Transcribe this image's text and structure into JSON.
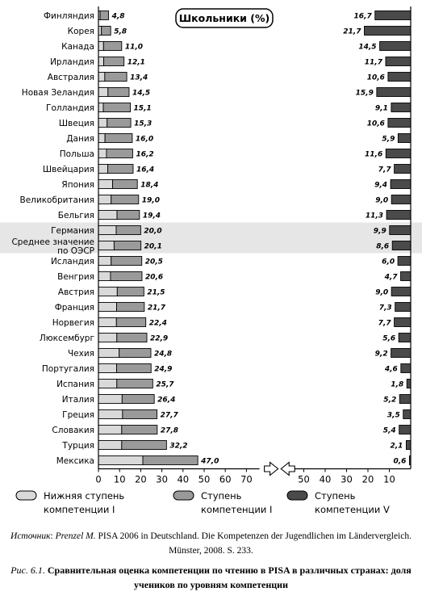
{
  "chart_data": {
    "type": "bar",
    "title": "Школьники (%)",
    "categories": [
      "Финляндия",
      "Корея",
      "Канада",
      "Ирландия",
      "Австралия",
      "Новая Зеландия",
      "Голландия",
      "Швеция",
      "Дания",
      "Польша",
      "Швейцария",
      "Япония",
      "Великобритания",
      "Бельгия",
      "Германия",
      "Среднее значение по ОЭСР",
      "Исландия",
      "Венгрия",
      "Австрия",
      "Франция",
      "Норвегия",
      "Люксембург",
      "Чехия",
      "Португалия",
      "Испания",
      "Италия",
      "Греция",
      "Словакия",
      "Турция",
      "Мексика"
    ],
    "highlighted": [
      "Германия",
      "Среднее значение по ОЭСР"
    ],
    "series": [
      {
        "name": "Нижняя ступень компетенции I",
        "values": [
          0.8,
          1.4,
          2.4,
          2.5,
          3.0,
          4.5,
          2.3,
          4.1,
          3.1,
          3.8,
          4.4,
          6.7,
          6.0,
          8.8,
          8.4,
          7.4,
          6.0,
          5.7,
          8.9,
          8.6,
          8.5,
          8.7,
          9.8,
          8.6,
          8.7,
          11.2,
          11.4,
          11.0,
          11.0,
          21.0
        ]
      },
      {
        "name": "Ступень компетенции I",
        "values": [
          4.0,
          4.4,
          8.6,
          9.6,
          10.4,
          10.0,
          12.8,
          11.2,
          12.9,
          12.4,
          12.0,
          11.7,
          13.0,
          10.6,
          11.6,
          12.7,
          14.5,
          14.9,
          12.6,
          13.1,
          13.9,
          14.2,
          15.0,
          16.3,
          17.0,
          15.2,
          16.3,
          16.8,
          21.2,
          26.0
        ]
      },
      {
        "name": "Ступень компетенции V",
        "values": [
          16.7,
          21.7,
          14.5,
          11.7,
          10.6,
          15.9,
          9.1,
          10.6,
          5.9,
          11.6,
          7.7,
          9.4,
          9.0,
          11.3,
          9.9,
          8.6,
          6.0,
          4.7,
          9.0,
          7.3,
          7.7,
          5.6,
          9.2,
          4.6,
          1.8,
          5.2,
          3.5,
          5.4,
          2.1,
          0.6
        ]
      }
    ],
    "low_totals": [
      "4,8",
      "5,8",
      "11,0",
      "12,1",
      "13,4",
      "14,5",
      "15,1",
      "15,3",
      "16,0",
      "16,2",
      "16,4",
      "18,4",
      "19,0",
      "19,4",
      "20,0",
      "20,1",
      "20,5",
      "20,6",
      "21,5",
      "21,7",
      "22,4",
      "22,9",
      "24,8",
      "24,9",
      "25,7",
      "26,4",
      "27,7",
      "27,8",
      "32,2",
      "47,0"
    ],
    "high_labels": [
      "16,7",
      "21,7",
      "14,5",
      "11,7",
      "10,6",
      "15,9",
      "9,1",
      "10,6",
      "5,9",
      "11,6",
      "7,7",
      "9,4",
      "9,0",
      "11,3",
      "9,9",
      "8,6",
      "6,0",
      "4,7",
      "9,0",
      "7,3",
      "7,7",
      "5,6",
      "9,2",
      "4,6",
      "1,8",
      "5,2",
      "3,5",
      "5,4",
      "2,1",
      "0,6"
    ],
    "left_axis": {
      "ticks": [
        0,
        10,
        20,
        30,
        40,
        50,
        60,
        70
      ],
      "range": [
        0,
        80
      ]
    },
    "right_axis": {
      "ticks": [
        50,
        40,
        30,
        20,
        10
      ],
      "range": [
        60,
        0
      ],
      "reversed": true
    },
    "legend": [
      {
        "label_line1": "Нижняя ступень",
        "label_line2": "компетенции I",
        "color": "#d9d9d9"
      },
      {
        "label_line1": "Ступень",
        "label_line2": "компетенции I",
        "color": "#9a9a9a"
      },
      {
        "label_line1": "Ступень",
        "label_line2": "компетенции V",
        "color": "#4a4a4a"
      }
    ]
  },
  "colors": {
    "low": "#d9d9d9",
    "mid": "#9a9a9a",
    "high": "#4a4a4a",
    "highlight_band": "#e6e6e6"
  },
  "source": {
    "label": "Источник",
    "author": "Prenzel M.",
    "text": "PISA 2006 in Deutschland. Die Kompetenzen der Jugendlichen im Ländervergleich. Münster, 2008. S. 233."
  },
  "figure_caption": {
    "number": "Рис. 6.1.",
    "text": "Сравнительная оценка компетенции по чтению в PISA в различных странах: доля учеников по уровням компетенции"
  }
}
